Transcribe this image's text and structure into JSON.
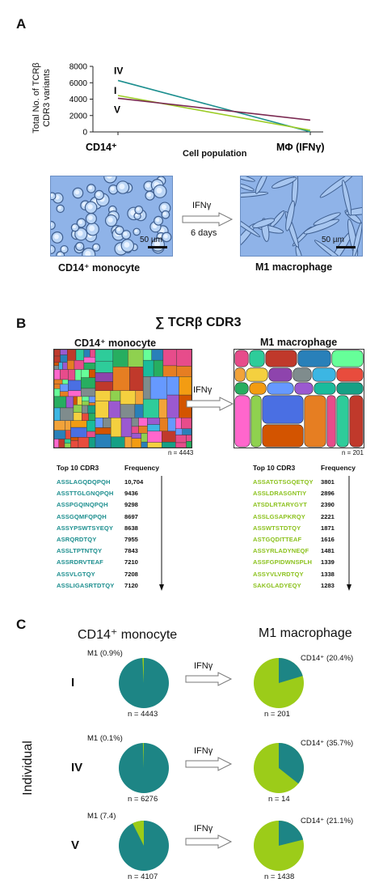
{
  "panels": {
    "a": "A",
    "b": "B",
    "c": "C"
  },
  "panel_a": {
    "chart_data": {
      "type": "line",
      "categories": [
        "CD14⁺",
        "MΦ (IFNγ)"
      ],
      "series": [
        {
          "name": "IV",
          "values": [
            6276,
            14
          ],
          "color": "#1d8f8f"
        },
        {
          "name": "I",
          "values": [
            4443,
            201
          ],
          "color": "#9ccc26"
        },
        {
          "name": "V",
          "values": [
            4107,
            1438
          ],
          "color": "#7b2a52"
        }
      ],
      "ylabel_line1": "Total No. of TCRβ",
      "ylabel_line2": "CDR3 variants",
      "xlabel": "Cell population",
      "ylim": [
        0,
        8000
      ],
      "yticks": [
        "0",
        "2000",
        "4000",
        "6000",
        "8000"
      ],
      "grid": false
    },
    "image_left_caption": "CD14⁺ monocyte",
    "image_right_caption": "M1 macrophage",
    "arrow_label": "IFNγ",
    "arrow_sublabel": "6 days",
    "scale_label": "50 µm"
  },
  "panel_b": {
    "title": "∑ TCRβ  CDR3",
    "left_title": "CD14⁺ monocyte",
    "right_title": "M1 macrophage",
    "arrow_label": "IFNγ",
    "left_n": "n = 4443",
    "right_n": "n = 201",
    "left_header_seq": "Top 10 CDR3",
    "left_header_freq": "Frequency",
    "right_header_seq": "Top 10 CDR3",
    "right_header_freq": "Frequency",
    "left_rows": [
      {
        "seq": "ASSLAGQDQPQH",
        "freq": "10,704"
      },
      {
        "seq": "ASSTTGLGNQPQH",
        "freq": "9436"
      },
      {
        "seq": "ASSPGQINQPQH",
        "freq": "9298"
      },
      {
        "seq": "ASSGQMFQPQH",
        "freq": "8697"
      },
      {
        "seq": "ASSYPSWTSYEQY",
        "freq": "8638"
      },
      {
        "seq": "ASRQRDTQY",
        "freq": "7955"
      },
      {
        "seq": "ASSLTPTNTQY",
        "freq": "7843"
      },
      {
        "seq": "ASSRDRVTEAF",
        "freq": "7210"
      },
      {
        "seq": "ASSVLGTQY",
        "freq": "7208"
      },
      {
        "seq": "ASSLIGASRTDTQY",
        "freq": "7120"
      }
    ],
    "right_rows": [
      {
        "seq": "ASSATGTSGQETQY",
        "freq": "3801"
      },
      {
        "seq": "ASSLDRASGNTIY",
        "freq": "2896"
      },
      {
        "seq": "ATSDLRTARYGYT",
        "freq": "2390"
      },
      {
        "seq": "ASSLGSAPKRQY",
        "freq": "2221"
      },
      {
        "seq": "ASSWTSTDTQY",
        "freq": "1871"
      },
      {
        "seq": "ASTGQDITTEAF",
        "freq": "1616"
      },
      {
        "seq": "ASSYRLADYNEQF",
        "freq": "1481"
      },
      {
        "seq": "ASSFGPIDWNSPLH",
        "freq": "1339"
      },
      {
        "seq": "ASSYVLVRDTQY",
        "freq": "1338"
      },
      {
        "seq": "SAKGLADYEQY",
        "freq": "1283"
      }
    ]
  },
  "panel_c": {
    "left_header": "CD14⁺ monocyte",
    "right_header": "M1 macrophage",
    "side_label": "Individual",
    "arrow_label": "IFNγ",
    "colors": {
      "teal": "#1d8585",
      "lime": "#9ccc19"
    },
    "chart_data": [
      {
        "type": "pie",
        "individual": "I",
        "population": "CD14⁺ monocyte",
        "slice_label": "M1 (0.9%)",
        "n": "n = 4443",
        "lime_fraction": 0.009
      },
      {
        "type": "pie",
        "individual": "I",
        "population": "M1 macrophage",
        "slice_label": "CD14⁺ (20.4%)",
        "n": "n = 201",
        "teal_fraction": 0.204
      },
      {
        "type": "pie",
        "individual": "IV",
        "population": "CD14⁺ monocyte",
        "slice_label": "M1 (0.1%)",
        "n": "n = 6276",
        "lime_fraction": 0.001
      },
      {
        "type": "pie",
        "individual": "IV",
        "population": "M1 macrophage",
        "slice_label": "CD14⁺ (35.7%)",
        "n": "n = 14",
        "teal_fraction": 0.357
      },
      {
        "type": "pie",
        "individual": "V",
        "population": "CD14⁺ monocyte",
        "slice_label": "M1 (7.4)",
        "n": "n = 4107",
        "lime_fraction": 0.074
      },
      {
        "type": "pie",
        "individual": "V",
        "population": "M1 macrophage",
        "slice_label": "CD14⁺ (21.1%)",
        "n": "n = 1438",
        "teal_fraction": 0.211
      }
    ]
  }
}
